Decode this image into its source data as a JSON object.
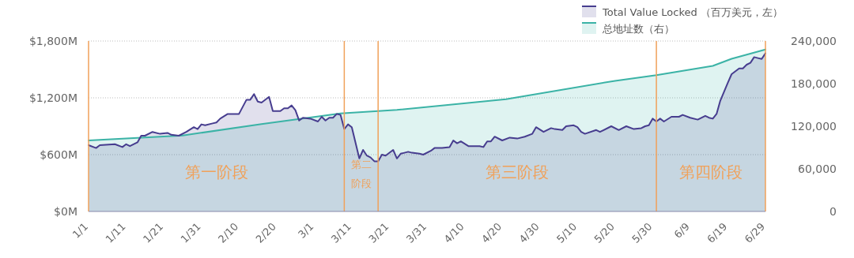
{
  "chart_data": {
    "type": "area",
    "x": [
      "--01-01",
      "--01-03",
      "--01-04",
      "--01-08",
      "--01-10",
      "--01-11",
      "--01-12",
      "--01-14",
      "--01-15",
      "--01-16",
      "--01-18",
      "--01-20",
      "--01-22",
      "--01-23",
      "--01-25",
      "--01-27",
      "--01-29",
      "--01-30",
      "--01-31",
      "--02-01",
      "--02-03",
      "--02-04",
      "--02-05",
      "--02-07",
      "--02-10",
      "--02-12",
      "--02-13",
      "--02-14",
      "--02-15",
      "--02-16",
      "--02-18",
      "--02-19",
      "--02-21",
      "--02-22",
      "--02-23",
      "--02-24",
      "--02-25",
      "--02-26",
      "--02-27",
      "--02-29",
      "--03-02",
      "--03-03",
      "--03-04",
      "--03-05",
      "--03-06",
      "--03-07",
      "--03-08",
      "--03-09",
      "--03-10",
      "--03-11",
      "--03-13",
      "--03-14",
      "--03-15",
      "--03-16",
      "--03-17",
      "--03-18",
      "--03-19",
      "--03-20",
      "--03-22",
      "--03-23",
      "--03-24",
      "--03-25",
      "--03-26",
      "--03-27",
      "--03-29",
      "--03-30",
      "--04-01",
      "--04-02",
      "--04-04",
      "--04-06",
      "--04-07",
      "--04-08",
      "--04-09",
      "--04-11",
      "--04-12",
      "--04-13",
      "--04-14",
      "--04-15",
      "--04-16",
      "--04-17",
      "--04-18",
      "--04-20",
      "--04-22",
      "--04-24",
      "--04-26",
      "--04-28",
      "--04-29",
      "--05-01",
      "--05-03",
      "--05-04",
      "--05-06",
      "--05-07",
      "--05-09",
      "--05-10",
      "--05-11",
      "--05-12",
      "--05-15",
      "--05-16",
      "--05-19",
      "--05-21",
      "--05-23",
      "--05-25",
      "--05-27",
      "--05-28",
      "--05-29",
      "--05-30",
      "--05-31",
      "--06-01",
      "--06-02",
      "--06-04",
      "--06-06",
      "--06-07",
      "--06-09",
      "--06-11",
      "--06-13",
      "--06-14",
      "--06-15",
      "--06-16",
      "--06-17",
      "--06-19",
      "--06-20",
      "--06-22",
      "--06-23",
      "--06-24",
      "--06-25",
      "--06-26",
      "--06-27",
      "--06-28",
      "--06-29"
    ],
    "series": [
      {
        "name": "总地址数（右）",
        "axis": "y2",
        "color": "#3bb3a6",
        "x": [
          "--01-01",
          "--01-26",
          "--02-16",
          "--03-08",
          "--03-23",
          "--04-21",
          "--05-20",
          "--05-31",
          "--06-15",
          "--06-20",
          "--06-29"
        ],
        "values": [
          100000,
          107000,
          123000,
          138000,
          143000,
          158000,
          184000,
          192000,
          205000,
          215000,
          228000
        ]
      },
      {
        "name": "Total Value Locked （百万美元，左）",
        "color": "#473d8f",
        "values": [
          700,
          670,
          700,
          710,
          680,
          710,
          690,
          730,
          800,
          800,
          840,
          820,
          830,
          810,
          800,
          840,
          890,
          870,
          920,
          910,
          930,
          940,
          980,
          1030,
          1030,
          1180,
          1180,
          1240,
          1160,
          1150,
          1210,
          1060,
          1060,
          1090,
          1090,
          1120,
          1070,
          960,
          990,
          980,
          950,
          1000,
          960,
          990,
          990,
          1030,
          1020,
          870,
          920,
          890,
          560,
          650,
          590,
          570,
          530,
          530,
          600,
          590,
          650,
          560,
          610,
          620,
          630,
          620,
          610,
          600,
          640,
          670,
          670,
          680,
          750,
          720,
          740,
          690,
          690,
          690,
          690,
          680,
          740,
          740,
          790,
          750,
          780,
          770,
          790,
          820,
          890,
          840,
          880,
          870,
          860,
          900,
          910,
          890,
          840,
          820,
          860,
          840,
          900,
          860,
          900,
          870,
          880,
          900,
          910,
          980,
          950,
          980,
          950,
          1000,
          1000,
          1020,
          990,
          970,
          1010,
          990,
          980,
          1030,
          1170,
          1360,
          1450,
          1510,
          1510,
          1550,
          1570,
          1630,
          1620,
          1610,
          1670
        ]
      }
    ],
    "xlim": [
      "--01-01",
      "--06-29"
    ],
    "xticks": [
      {
        "value": "--01-01",
        "label": "1/1"
      },
      {
        "value": "--01-11",
        "label": "1/11"
      },
      {
        "value": "--01-21",
        "label": "1/21"
      },
      {
        "value": "--01-31",
        "label": "1/31"
      },
      {
        "value": "--02-10",
        "label": "2/10"
      },
      {
        "value": "--02-20",
        "label": "2/20"
      },
      {
        "value": "--03-01",
        "label": "3/1"
      },
      {
        "value": "--03-11",
        "label": "3/11"
      },
      {
        "value": "--03-21",
        "label": "3/21"
      },
      {
        "value": "--03-31",
        "label": "3/31"
      },
      {
        "value": "--04-10",
        "label": "4/10"
      },
      {
        "value": "--04-20",
        "label": "4/20"
      },
      {
        "value": "--04-30",
        "label": "4/30"
      },
      {
        "value": "--05-10",
        "label": "5/10"
      },
      {
        "value": "--05-20",
        "label": "5/20"
      },
      {
        "value": "--05-30",
        "label": "5/30"
      },
      {
        "value": "--06-09",
        "label": "6/9"
      },
      {
        "value": "--06-19",
        "label": "6/19"
      },
      {
        "value": "--06-29",
        "label": "6/29"
      }
    ],
    "ylim": [
      0,
      1800
    ],
    "yticks": [
      {
        "value": 0,
        "label": "$0M"
      },
      {
        "value": 600,
        "label": "$600M"
      },
      {
        "value": 1200,
        "label": "$1,200M"
      },
      {
        "value": 1800,
        "label": "$1,800M"
      }
    ],
    "y2lim": [
      0,
      240000
    ],
    "y2ticks": [
      0,
      {
        "value": 60000,
        "label": "60,000"
      },
      {
        "value": 120000,
        "label": "120,000"
      },
      {
        "value": 180000,
        "label": "180,000"
      },
      {
        "value": 240000,
        "label": "240,000"
      }
    ],
    "ref_lines": [
      {
        "axis": "x",
        "value": "--01-01",
        "color": "#f0a15a"
      },
      {
        "axis": "x",
        "value": "--03-09",
        "color": "#f0a15a"
      },
      {
        "axis": "x",
        "value": "--03-18",
        "color": "#f0a15a"
      },
      {
        "axis": "x",
        "value": "--05-31",
        "color": "#f0a15a"
      },
      {
        "axis": "x",
        "value": "--06-29",
        "color": "#f0a15a"
      }
    ],
    "annotations": [
      "第一阶段",
      "第二阶段",
      "第三阶段",
      "第四阶段"
    ],
    "grid": "y",
    "legend": "top right"
  }
}
